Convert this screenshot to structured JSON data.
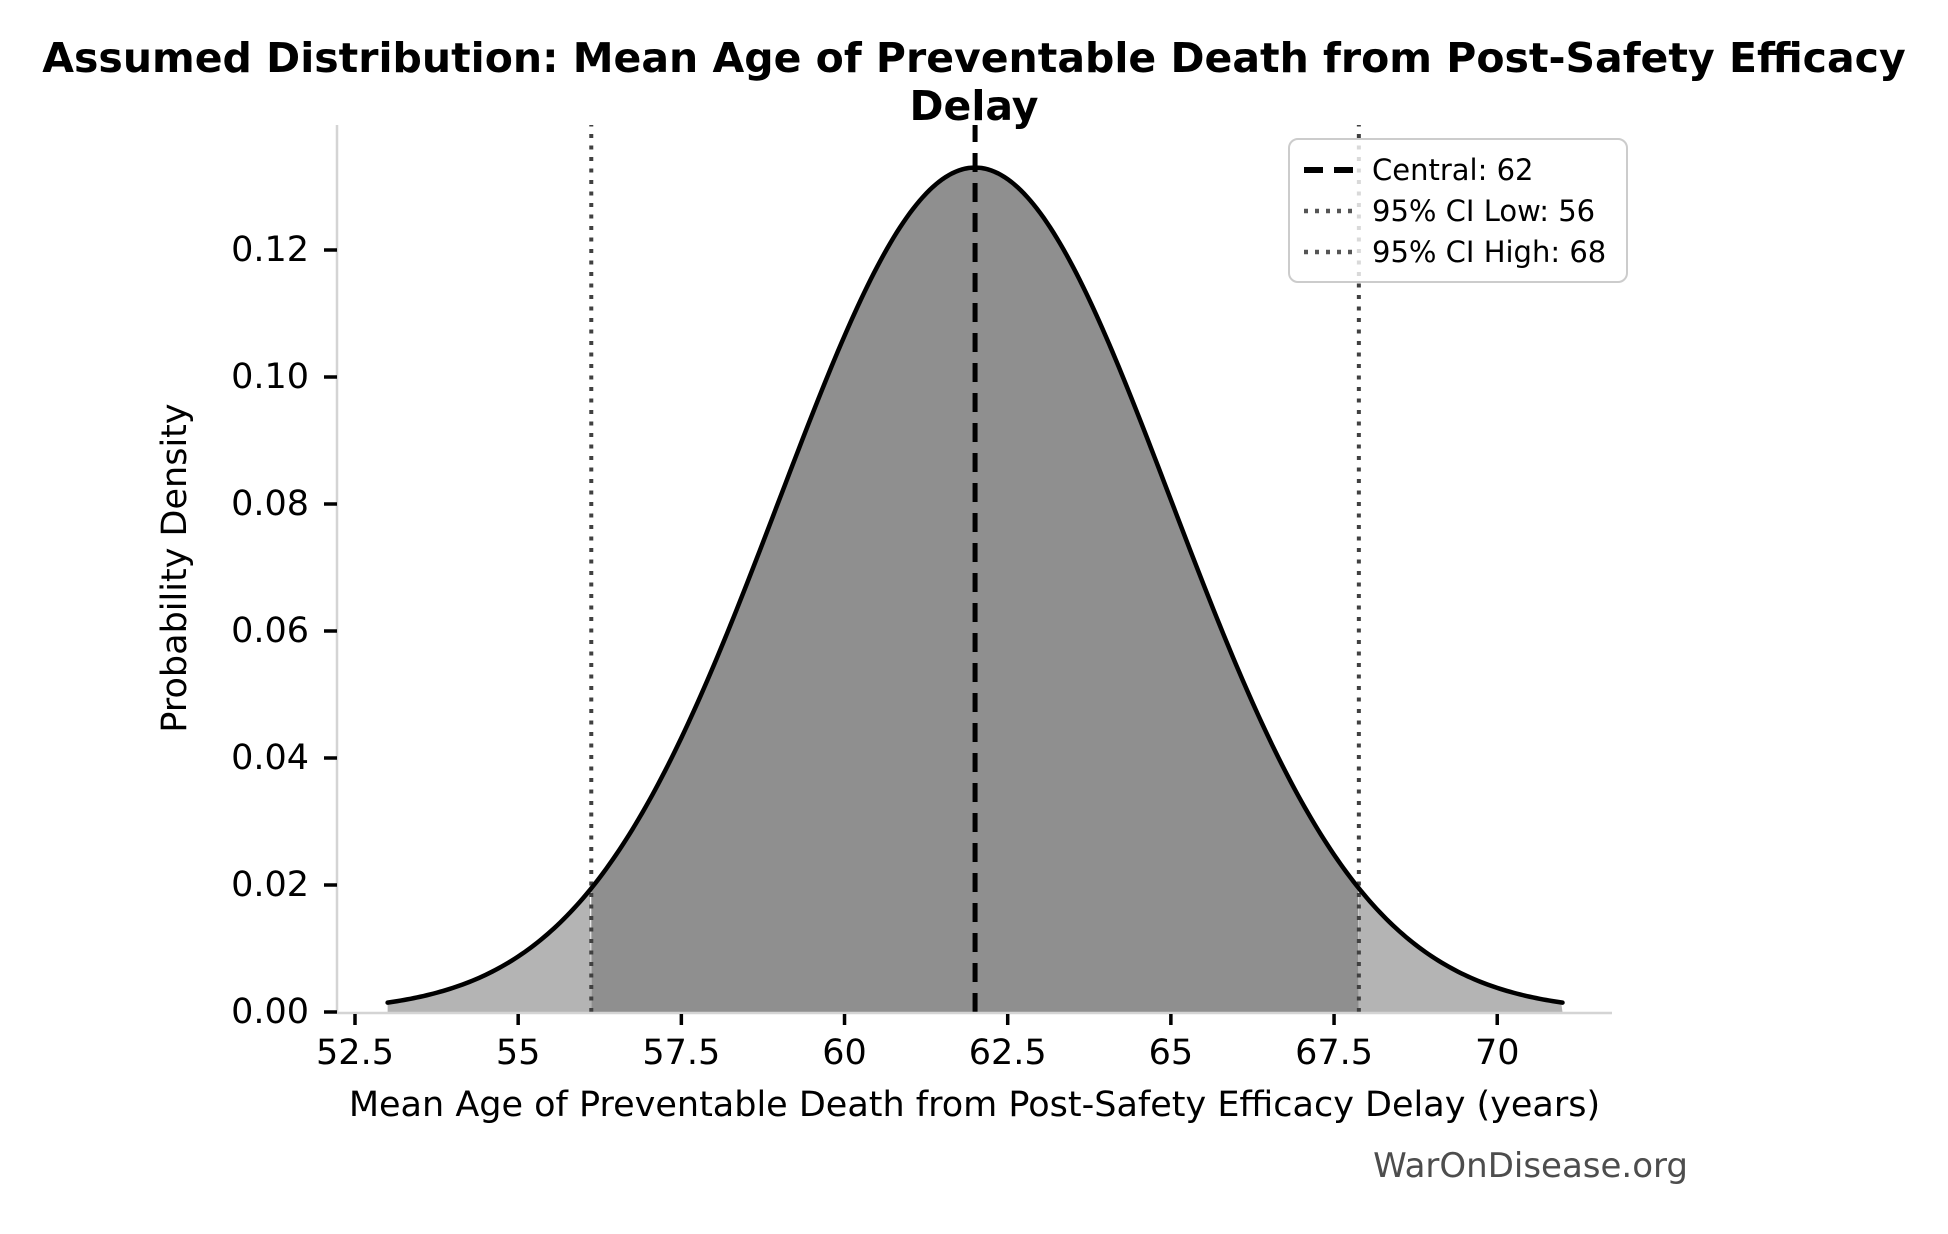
{
  "figure": {
    "watermark": "WarOnDisease.org"
  },
  "chart_data": {
    "type": "area",
    "title": "Assumed Distribution: Mean Age of Preventable Death from Post-Safety Efficacy Delay",
    "xlabel": "Mean Age of Preventable Death from Post-Safety Efficacy Delay (years)",
    "ylabel": "Probability Density",
    "distribution": "normal",
    "mean": 62,
    "sigma": 3,
    "x_range": [
      53,
      71
    ],
    "xlim": [
      52.2,
      71.8
    ],
    "ylim": [
      0,
      0.1397
    ],
    "peak_density": 0.133,
    "central": 62,
    "ci_level": "95%",
    "ci_low": 56,
    "ci_high": 68,
    "ci_line_positions": [
      56.12,
      67.88
    ],
    "grid": false,
    "x_ticks": {
      "values": [
        52.5,
        55,
        57.5,
        60,
        62.5,
        65,
        67.5,
        70
      ],
      "labels": [
        "52.5",
        "55",
        "57.5",
        "60",
        "62.5",
        "65",
        "67.5",
        "70"
      ]
    },
    "y_ticks": {
      "values": [
        0.0,
        0.02,
        0.04,
        0.06,
        0.08,
        0.1,
        0.12
      ],
      "labels": [
        "0.00",
        "0.02",
        "0.04",
        "0.06",
        "0.08",
        "0.10",
        "0.12"
      ]
    },
    "series": [
      {
        "name": "probability density",
        "x": [
          53,
          54,
          55,
          56,
          57,
          58,
          59,
          60,
          61,
          62,
          63,
          64,
          65,
          66,
          67,
          68,
          69,
          70,
          71
        ],
        "y": [
          0.001477,
          0.003798,
          0.008741,
          0.017997,
          0.033159,
          0.05467,
          0.080657,
          0.106482,
          0.125795,
          0.132981,
          0.125795,
          0.106482,
          0.080657,
          0.05467,
          0.033159,
          0.017997,
          0.008741,
          0.003798,
          0.001477
        ]
      }
    ],
    "legend": {
      "position": "upper right",
      "items": [
        {
          "label": "Central: 62",
          "style": "dashed",
          "color": "#000000"
        },
        {
          "label": "95% CI Low: 56",
          "style": "dotted",
          "color": "#555555"
        },
        {
          "label": "95% CI High: 68",
          "style": "dotted",
          "color": "#555555"
        }
      ]
    },
    "colors": {
      "curve": "#000000",
      "ci_fill": "#8f8f8f",
      "tail_fill": "#b4b4b4",
      "central_line": "#000000",
      "ci_line": "#404040",
      "spine": "#d4d4d4",
      "tick": "#000000",
      "watermark": "#4d4d4d"
    }
  }
}
